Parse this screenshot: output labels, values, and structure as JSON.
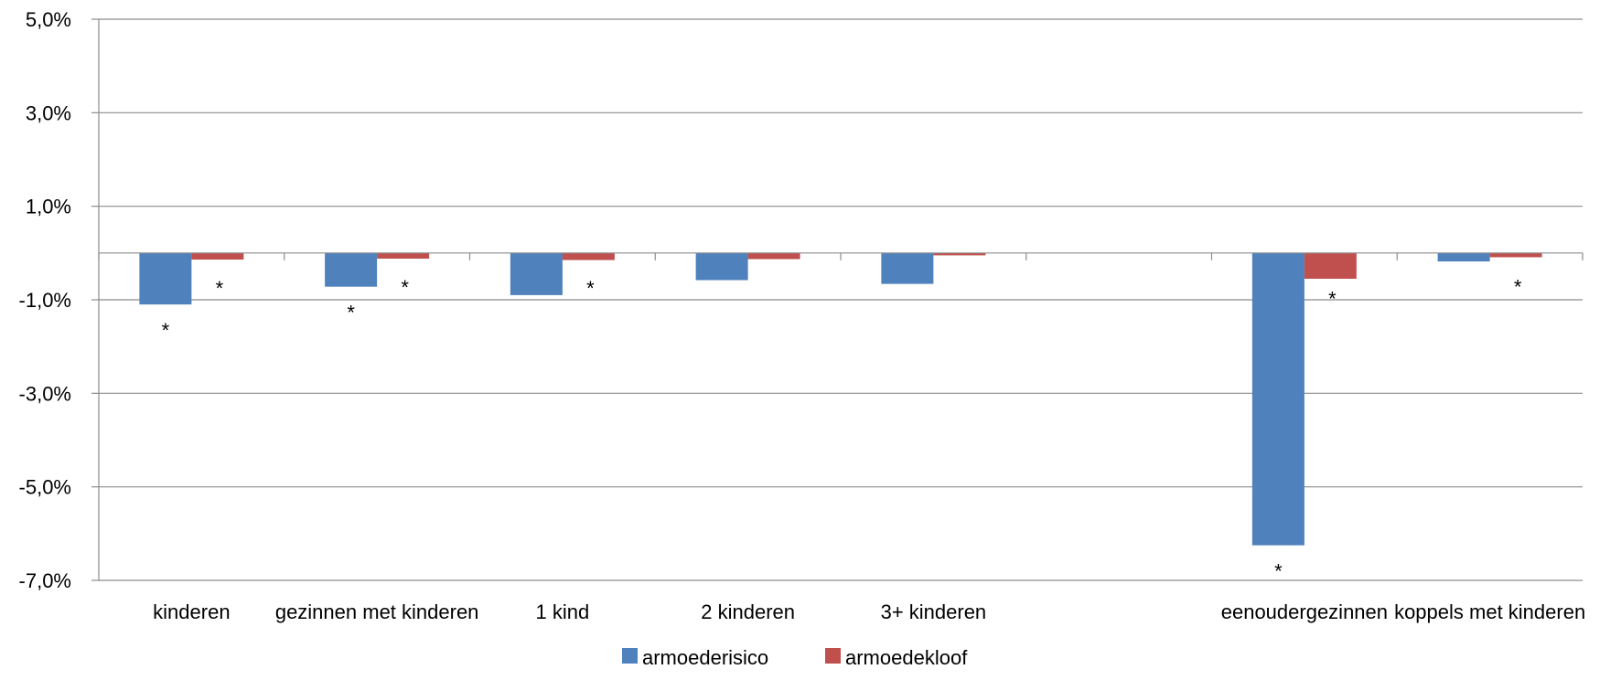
{
  "chart_data": {
    "type": "bar",
    "title": "",
    "xlabel": "",
    "ylabel": "",
    "ylim": [
      -7.0,
      5.0
    ],
    "yticks": [
      5.0,
      3.0,
      1.0,
      -1.0,
      -3.0,
      -5.0,
      -7.0
    ],
    "ytick_labels": [
      "5,0%",
      "3,0%",
      "1,0%",
      "-1,0%",
      "-3,0%",
      "-5,0%",
      "-7,0%"
    ],
    "grid": true,
    "legend_position": "bottom",
    "categories": [
      "kinderen",
      "gezinnen met kinderen",
      "1 kind",
      "2 kinderen",
      "3+ kinderen",
      "",
      "eenoudergezinnen",
      "koppels met kinderen"
    ],
    "series": [
      {
        "name": "armoederisico",
        "color": "#4F81BD",
        "values": [
          -1.1,
          -0.72,
          -0.9,
          -0.58,
          -0.66,
          null,
          -6.25,
          -0.18
        ],
        "significant": [
          true,
          true,
          false,
          false,
          false,
          false,
          true,
          false
        ]
      },
      {
        "name": "armoedekloof",
        "color": "#C0504D",
        "values": [
          -0.14,
          -0.12,
          -0.15,
          -0.13,
          -0.05,
          null,
          -0.55,
          -0.09
        ],
        "significant": [
          true,
          true,
          true,
          false,
          false,
          false,
          true,
          true
        ]
      }
    ],
    "significance_marker": "*"
  }
}
